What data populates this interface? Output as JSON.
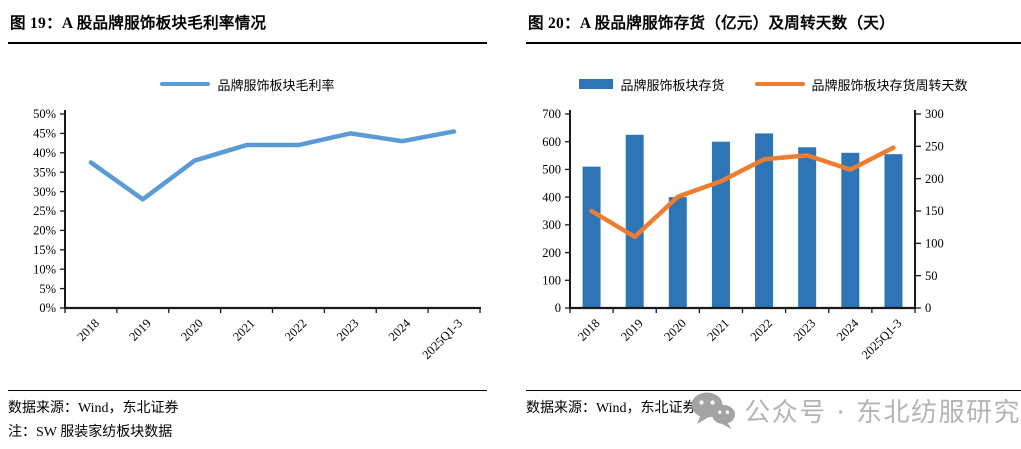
{
  "left_panel": {
    "title": "图 19：A 股品牌服饰板块毛利率情况",
    "source": "数据来源：Wind，东北证券",
    "note": "注：SW 服装家纺板块数据"
  },
  "right_panel": {
    "title": "图 20：A 股品牌服饰存货（亿元）及周转天数（天）",
    "source": "数据来源：Wind，东北证券",
    "watermark": "公众号 · 东北纺服研究"
  },
  "colors": {
    "margin_line": "#5B9BD5",
    "inventory_bar": "#2E75B6",
    "turnover_line": "#ED7D31",
    "axis": "#1a1a1a",
    "watermark_gray": "#b4b4b4",
    "watermark_icon_gray": "#a3a3a3"
  },
  "chart_data": [
    {
      "type": "line",
      "title": "图 19：A 股品牌服饰板块毛利率情况",
      "categories": [
        "2018",
        "2019",
        "2020",
        "2021",
        "2022",
        "2023",
        "2024",
        "2025Q1-3"
      ],
      "series": [
        {
          "name": "品牌服饰板块毛利率",
          "marker": "line",
          "axis": "left",
          "color": "#5B9BD5",
          "values": [
            37.5,
            28,
            38,
            42,
            42,
            45,
            43,
            45.5
          ]
        }
      ],
      "y_axis": {
        "min": 0,
        "max": 50,
        "step": 5,
        "format": "percent"
      },
      "xlabel": "",
      "ylabel": "",
      "grid": false,
      "legend_position": "top"
    },
    {
      "type": "bar+line",
      "title": "图 20：A 股品牌服饰存货（亿元）及周转天数（天）",
      "categories": [
        "2018",
        "2019",
        "2020",
        "2021",
        "2022",
        "2023",
        "2024",
        "2025Q1-3"
      ],
      "series": [
        {
          "name": "品牌服饰板块存货",
          "marker": "bar",
          "axis": "left",
          "color": "#2E75B6",
          "values": [
            510,
            625,
            400,
            600,
            630,
            580,
            560,
            555
          ]
        },
        {
          "name": "品牌服饰板块存货周转天数",
          "marker": "line",
          "axis": "right",
          "color": "#ED7D31",
          "values": [
            150,
            110,
            172,
            196,
            230,
            236,
            214,
            248
          ]
        }
      ],
      "y_axis_left": {
        "min": 0,
        "max": 700,
        "step": 100,
        "format": "plain"
      },
      "y_axis_right": {
        "min": 0,
        "max": 300,
        "step": 50,
        "format": "plain"
      },
      "xlabel": "",
      "ylabel": "",
      "grid": false,
      "legend_position": "top"
    }
  ]
}
